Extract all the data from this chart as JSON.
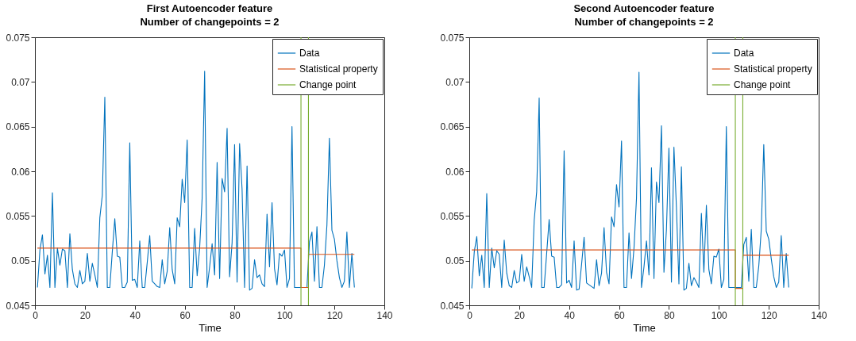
{
  "chart_data": [
    {
      "type": "line",
      "title": "First Autoencoder feature",
      "subtitle": "Number of changepoints = 2",
      "xlabel": "Time",
      "x": [
        1,
        2,
        3,
        4,
        5,
        6,
        7,
        8,
        9,
        10,
        11,
        12,
        13,
        14,
        15,
        16,
        17,
        18,
        19,
        20,
        21,
        22,
        23,
        24,
        25,
        26,
        27,
        28,
        29,
        30,
        31,
        32,
        33,
        34,
        35,
        36,
        37,
        38,
        39,
        40,
        41,
        42,
        43,
        44,
        45,
        46,
        47,
        48,
        49,
        50,
        51,
        52,
        53,
        54,
        55,
        56,
        57,
        58,
        59,
        60,
        61,
        62,
        63,
        64,
        65,
        66,
        67,
        68,
        69,
        70,
        71,
        72,
        73,
        74,
        75,
        76,
        77,
        78,
        79,
        80,
        81,
        82,
        83,
        84,
        85,
        86,
        87,
        88,
        89,
        90,
        91,
        92,
        93,
        94,
        95,
        96,
        97,
        98,
        99,
        100,
        101,
        102,
        103,
        104,
        105,
        106,
        107,
        108,
        109,
        110,
        111,
        112,
        113,
        114,
        115,
        116,
        117,
        118,
        119,
        120,
        121,
        122,
        123,
        124,
        125,
        126,
        127,
        128
      ],
      "series": [
        {
          "name": "Data",
          "color": "#0072bd",
          "values": [
            0.047,
            0.0512,
            0.0529,
            0.0485,
            0.0506,
            0.047,
            0.0576,
            0.047,
            0.0514,
            0.0495,
            0.0513,
            0.0511,
            0.047,
            0.053,
            0.049,
            0.0474,
            0.047,
            0.0489,
            0.0474,
            0.0477,
            0.0508,
            0.0477,
            0.0497,
            0.0484,
            0.047,
            0.0548,
            0.0573,
            0.0683,
            0.047,
            0.047,
            0.051,
            0.0547,
            0.0505,
            0.0504,
            0.047,
            0.047,
            0.0476,
            0.0632,
            0.0478,
            0.0479,
            0.047,
            0.0522,
            0.047,
            0.047,
            0.0498,
            0.0528,
            0.0477,
            0.0474,
            0.0471,
            0.047,
            0.0501,
            0.0474,
            0.0488,
            0.0537,
            0.049,
            0.0474,
            0.0548,
            0.0538,
            0.0591,
            0.0565,
            0.0635,
            0.047,
            0.047,
            0.0536,
            0.0483,
            0.0514,
            0.057,
            0.0712,
            0.047,
            0.0493,
            0.0519,
            0.0484,
            0.061,
            0.048,
            0.0592,
            0.0577,
            0.0648,
            0.0482,
            0.052,
            0.063,
            0.0476,
            0.0631,
            0.058,
            0.047,
            0.0606,
            0.0467,
            0.0469,
            0.0501,
            0.0481,
            0.0484,
            0.0474,
            0.0471,
            0.0552,
            0.0493,
            0.0565,
            0.0491,
            0.0473,
            0.0508,
            0.0505,
            0.0512,
            0.047,
            0.048,
            0.065,
            0.047,
            0.047,
            0.047,
            0.047,
            0.047,
            0.047,
            0.0521,
            0.0532,
            0.0477,
            0.0538,
            0.047,
            0.047,
            0.0495,
            0.054,
            0.0637,
            0.0534,
            0.0524,
            0.05,
            0.0481,
            0.047,
            0.0477,
            0.0532,
            0.047,
            0.0508,
            0.047
          ]
        },
        {
          "name": "Statistical property",
          "color": "#d95319",
          "x": [
            1,
            106.6,
            106.6,
            109.6,
            109.6,
            128
          ],
          "values": [
            0.0514,
            0.0514,
            0.047,
            0.047,
            0.0507,
            0.0507
          ]
        },
        {
          "name": "Change point",
          "color": "#77ac30",
          "x": [
            106.6,
            106.6,
            108,
            109.6,
            109.6
          ],
          "values": [
            0.045,
            0.075,
            null,
            0.075,
            0.045
          ]
        }
      ],
      "xlim": [
        0,
        140
      ],
      "xticks": [
        0,
        20,
        40,
        60,
        80,
        100,
        120,
        140
      ],
      "ylim": [
        0.045,
        0.075
      ],
      "yticks": [
        0.045,
        0.05,
        0.055,
        0.06,
        0.065,
        0.07,
        0.075
      ],
      "grid": false,
      "legend": "top right",
      "line_style": "solid"
    },
    {
      "type": "line",
      "title": "Second Autoencoder feature",
      "subtitle": "Number of changepoints = 2",
      "xlabel": "Time",
      "x": [
        1,
        2,
        3,
        4,
        5,
        6,
        7,
        8,
        9,
        10,
        11,
        12,
        13,
        14,
        15,
        16,
        17,
        18,
        19,
        20,
        21,
        22,
        23,
        24,
        25,
        26,
        27,
        28,
        29,
        30,
        31,
        32,
        33,
        34,
        35,
        36,
        37,
        38,
        39,
        40,
        41,
        42,
        43,
        44,
        45,
        46,
        47,
        48,
        49,
        50,
        51,
        52,
        53,
        54,
        55,
        56,
        57,
        58,
        59,
        60,
        61,
        62,
        63,
        64,
        65,
        66,
        67,
        68,
        69,
        70,
        71,
        72,
        73,
        74,
        75,
        76,
        77,
        78,
        79,
        80,
        81,
        82,
        83,
        84,
        85,
        86,
        87,
        88,
        89,
        90,
        91,
        92,
        93,
        94,
        95,
        96,
        97,
        98,
        99,
        100,
        101,
        102,
        103,
        104,
        105,
        106,
        107,
        108,
        109,
        110,
        111,
        112,
        113,
        114,
        115,
        116,
        117,
        118,
        119,
        120,
        121,
        122,
        123,
        124,
        125,
        126,
        127,
        128
      ],
      "series": [
        {
          "name": "Data",
          "color": "#0072bd",
          "values": [
            0.0469,
            0.051,
            0.0527,
            0.0483,
            0.0506,
            0.047,
            0.0575,
            0.047,
            0.0514,
            0.0492,
            0.0511,
            0.0507,
            0.047,
            0.0523,
            0.0486,
            0.0472,
            0.047,
            0.0489,
            0.0475,
            0.0477,
            0.0507,
            0.0477,
            0.0493,
            0.0482,
            0.047,
            0.0545,
            0.0577,
            0.0682,
            0.047,
            0.047,
            0.0508,
            0.0546,
            0.0505,
            0.0504,
            0.047,
            0.047,
            0.0473,
            0.0623,
            0.0475,
            0.0478,
            0.047,
            0.0522,
            0.0467,
            0.0468,
            0.0496,
            0.0526,
            0.0475,
            0.0473,
            0.0471,
            0.0469,
            0.0501,
            0.0472,
            0.0486,
            0.0537,
            0.0487,
            0.0474,
            0.0549,
            0.0538,
            0.0585,
            0.056,
            0.0634,
            0.047,
            0.047,
            0.0531,
            0.048,
            0.0514,
            0.057,
            0.0711,
            0.047,
            0.0493,
            0.0522,
            0.0484,
            0.0604,
            0.048,
            0.0588,
            0.0565,
            0.0651,
            0.0487,
            0.0535,
            0.0626,
            0.0476,
            0.0627,
            0.056,
            0.0474,
            0.0605,
            0.0467,
            0.0469,
            0.0497,
            0.0472,
            0.0481,
            0.0476,
            0.047,
            0.0553,
            0.0487,
            0.0562,
            0.049,
            0.0474,
            0.0505,
            0.0504,
            0.0513,
            0.047,
            0.0479,
            0.065,
            0.047,
            0.047,
            0.047,
            0.047,
            0.047,
            0.047,
            0.0518,
            0.0526,
            0.0477,
            0.0535,
            0.047,
            0.047,
            0.0494,
            0.0535,
            0.063,
            0.0533,
            0.0524,
            0.0502,
            0.0482,
            0.047,
            0.0476,
            0.0528,
            0.047,
            0.0508,
            0.047
          ]
        },
        {
          "name": "Statistical property",
          "color": "#d95319",
          "x": [
            1,
            106.6,
            106.6,
            109.6,
            109.6,
            128
          ],
          "values": [
            0.0512,
            0.0512,
            0.0469,
            0.0469,
            0.0506,
            0.0506
          ]
        },
        {
          "name": "Change point",
          "color": "#77ac30",
          "x": [
            106.6,
            106.6,
            108,
            109.6,
            109.6
          ],
          "values": [
            0.045,
            0.075,
            null,
            0.075,
            0.045
          ]
        }
      ],
      "xlim": [
        0,
        140
      ],
      "xticks": [
        0,
        20,
        40,
        60,
        80,
        100,
        120,
        140
      ],
      "ylim": [
        0.045,
        0.075
      ],
      "yticks": [
        0.045,
        0.05,
        0.055,
        0.06,
        0.065,
        0.07,
        0.075
      ],
      "grid": false,
      "legend": "top right",
      "line_style": "solid"
    }
  ]
}
